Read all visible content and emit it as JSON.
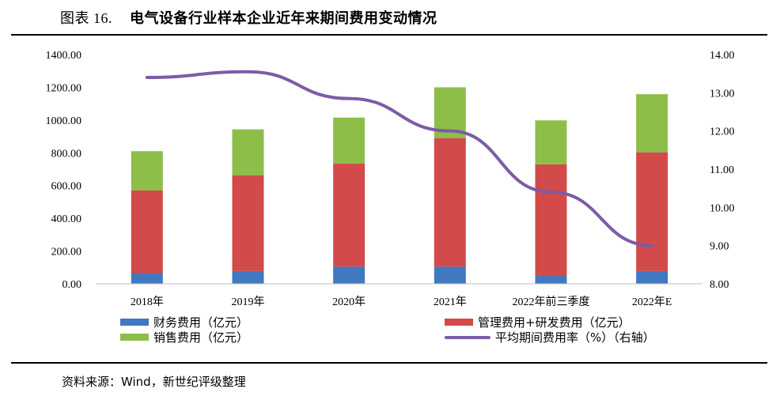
{
  "header": {
    "figure_number": "图表 16.",
    "title": "电气设备行业样本企业近年来期间费用变动情况"
  },
  "source": "资料来源：Wind，新世纪评级整理",
  "colors": {
    "finance": "#4178C0",
    "mgmt": "#D24A4A",
    "sales": "#8DBE49",
    "rate": "#7D5BA6",
    "axis": "#BFBFBF"
  },
  "chart_data": {
    "type": "bar",
    "stacked": true,
    "title": "电气设备行业样本企业近年来期间费用变动情况",
    "categories": [
      "2018年",
      "2019年",
      "2020年",
      "2021年",
      "2022年前三季度",
      "2022年E"
    ],
    "series": [
      {
        "name": "财务费用（亿元）",
        "axis": "left",
        "values": [
          65,
          78,
          105,
          105,
          48,
          78
        ]
      },
      {
        "name": "管理费用+研发费用（亿元）",
        "axis": "left",
        "values": [
          505,
          585,
          630,
          785,
          682,
          725
        ]
      },
      {
        "name": "销售费用（亿元）",
        "axis": "left",
        "values": [
          240,
          280,
          280,
          310,
          268,
          355
        ]
      },
      {
        "name": "平均期间费用率（%）（右轴）",
        "axis": "right",
        "type": "line",
        "values": [
          13.4,
          13.55,
          12.85,
          12.0,
          10.4,
          9.0
        ]
      }
    ],
    "y_left": {
      "min": 0,
      "max": 1400,
      "step": 200,
      "ticks": [
        "0.00",
        "200.00",
        "400.00",
        "600.00",
        "800.00",
        "1000.00",
        "1200.00",
        "1400.00"
      ]
    },
    "y_right": {
      "min": 8,
      "max": 14,
      "step": 1,
      "ticks": [
        "8.00",
        "9.00",
        "10.00",
        "11.00",
        "12.00",
        "13.00",
        "14.00"
      ]
    },
    "legend_placement": "bottom"
  }
}
